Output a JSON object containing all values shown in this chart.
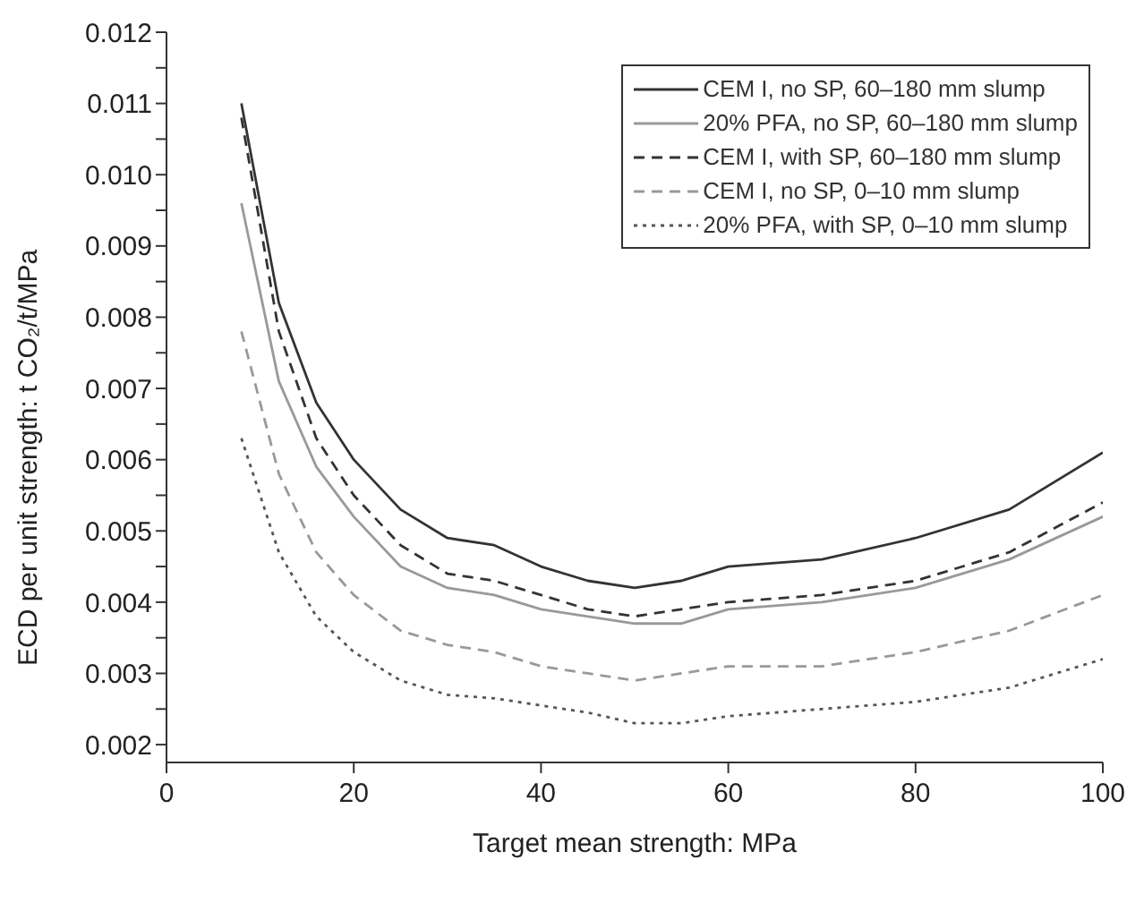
{
  "chart_data": {
    "type": "line",
    "xlabel": "Target mean strength: MPa",
    "ylabel": "ECD per unit strength: t CO₂/t/MPa",
    "x": [
      8,
      12,
      16,
      20,
      25,
      30,
      35,
      40,
      45,
      50,
      55,
      60,
      70,
      80,
      90,
      100
    ],
    "series": [
      {
        "name": "CEM I, no SP, 60–180 mm slump",
        "color": "#333333",
        "line_style": "solid",
        "values": [
          0.011,
          0.0082,
          0.0068,
          0.006,
          0.0053,
          0.0049,
          0.0048,
          0.0045,
          0.0043,
          0.0042,
          0.0043,
          0.0045,
          0.0046,
          0.0049,
          0.0053,
          0.0061
        ]
      },
      {
        "name": "20% PFA, no SP, 60–180 mm slump",
        "color": "#999999",
        "line_style": "solid",
        "values": [
          0.0096,
          0.0071,
          0.0059,
          0.0052,
          0.0045,
          0.0042,
          0.0041,
          0.0039,
          0.0038,
          0.0037,
          0.0037,
          0.0039,
          0.004,
          0.0042,
          0.0046,
          0.0052
        ]
      },
      {
        "name": "CEM I, with SP, 60–180 mm slump",
        "color": "#333333",
        "line_style": "dashed",
        "values": [
          0.0108,
          0.0078,
          0.0063,
          0.0055,
          0.0048,
          0.0044,
          0.0043,
          0.0041,
          0.0039,
          0.0038,
          0.0039,
          0.004,
          0.0041,
          0.0043,
          0.0047,
          0.0054
        ]
      },
      {
        "name": "CEM I, no SP, 0–10 mm slump",
        "color": "#999999",
        "line_style": "dashed",
        "values": [
          0.0078,
          0.0058,
          0.0047,
          0.0041,
          0.0036,
          0.0034,
          0.0033,
          0.0031,
          0.003,
          0.0029,
          0.003,
          0.0031,
          0.0031,
          0.0033,
          0.0036,
          0.0041
        ]
      },
      {
        "name": "20% PFA, with SP, 0–10 mm slump",
        "color": "#555555",
        "line_style": "dotted",
        "values": [
          0.0063,
          0.0047,
          0.0038,
          0.0033,
          0.0029,
          0.0027,
          0.00265,
          0.00255,
          0.00245,
          0.0023,
          0.0023,
          0.0024,
          0.0025,
          0.0026,
          0.0028,
          0.0032
        ]
      }
    ],
    "xlim": [
      0,
      100
    ],
    "xticks": [
      0,
      20,
      40,
      60,
      80,
      100
    ],
    "ylim": [
      0.00175,
      0.012
    ],
    "yticks": [
      0.002,
      {
        "value": 0.0025,
        "label": null
      },
      0.003,
      {
        "value": 0.0035,
        "label": null
      },
      0.004,
      {
        "value": 0.0045,
        "label": null
      },
      0.005,
      {
        "value": 0.0055,
        "label": null
      },
      0.006,
      {
        "value": 0.0065,
        "label": null
      },
      0.007,
      {
        "value": 0.0075,
        "label": null
      },
      0.008,
      {
        "value": 0.0085,
        "label": null
      },
      0.009,
      {
        "value": 0.0095,
        "label": null
      },
      {
        "value": 0.01,
        "label": "0.010"
      },
      {
        "value": 0.0105,
        "label": null
      },
      0.011,
      {
        "value": 0.0115,
        "label": null
      },
      0.012
    ],
    "grid": false,
    "legend": "top right",
    "marker": "none"
  }
}
